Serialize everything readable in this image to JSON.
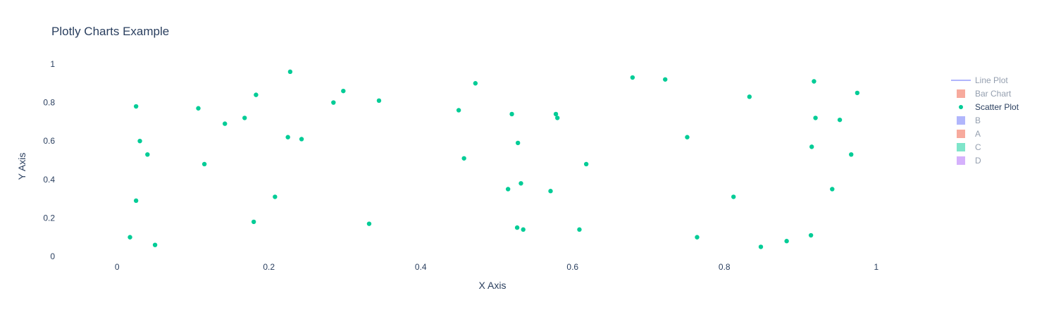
{
  "chart_data": {
    "type": "scatter",
    "title": "Plotly Charts Example",
    "xlabel": "X Axis",
    "ylabel": "Y Axis",
    "xlim": [
      -0.08,
      1.08
    ],
    "ylim": [
      -0.04,
      1.04
    ],
    "x_ticks": [
      "0",
      "0.2",
      "0.4",
      "0.6",
      "0.8",
      "1"
    ],
    "y_ticks": [
      "0",
      "0.2",
      "0.4",
      "0.6",
      "0.8",
      "1"
    ],
    "grid": false,
    "legend_position": "top-right",
    "legend": [
      {
        "name": "Line Plot",
        "symbol": "line",
        "color": "#636efa",
        "visible": false
      },
      {
        "name": "Bar Chart",
        "symbol": "square",
        "color": "#EF553B",
        "visible": false
      },
      {
        "name": "Scatter Plot",
        "symbol": "circle",
        "color": "#00cc96",
        "visible": true
      },
      {
        "name": "B",
        "symbol": "square",
        "color": "#636efa",
        "visible": false
      },
      {
        "name": "A",
        "symbol": "square",
        "color": "#EF553B",
        "visible": false
      },
      {
        "name": "C",
        "symbol": "square",
        "color": "#00cc96",
        "visible": false
      },
      {
        "name": "D",
        "symbol": "square",
        "color": "#ab63fa",
        "visible": false
      }
    ],
    "series": [
      {
        "name": "Scatter Plot",
        "color": "#00cc96",
        "points": [
          [
            0.017,
            0.1
          ],
          [
            0.025,
            0.78
          ],
          [
            0.025,
            0.29
          ],
          [
            0.03,
            0.6
          ],
          [
            0.04,
            0.53
          ],
          [
            0.05,
            0.06
          ],
          [
            0.107,
            0.77
          ],
          [
            0.115,
            0.48
          ],
          [
            0.142,
            0.69
          ],
          [
            0.168,
            0.72
          ],
          [
            0.18,
            0.18
          ],
          [
            0.183,
            0.84
          ],
          [
            0.208,
            0.31
          ],
          [
            0.225,
            0.62
          ],
          [
            0.228,
            0.96
          ],
          [
            0.243,
            0.61
          ],
          [
            0.285,
            0.8
          ],
          [
            0.298,
            0.86
          ],
          [
            0.332,
            0.17
          ],
          [
            0.345,
            0.81
          ],
          [
            0.45,
            0.76
          ],
          [
            0.457,
            0.51
          ],
          [
            0.472,
            0.9
          ],
          [
            0.515,
            0.35
          ],
          [
            0.52,
            0.74
          ],
          [
            0.527,
            0.15
          ],
          [
            0.528,
            0.59
          ],
          [
            0.532,
            0.38
          ],
          [
            0.535,
            0.14
          ],
          [
            0.571,
            0.34
          ],
          [
            0.578,
            0.74
          ],
          [
            0.58,
            0.72
          ],
          [
            0.609,
            0.14
          ],
          [
            0.618,
            0.48
          ],
          [
            0.679,
            0.93
          ],
          [
            0.722,
            0.92
          ],
          [
            0.751,
            0.62
          ],
          [
            0.764,
            0.1
          ],
          [
            0.812,
            0.31
          ],
          [
            0.833,
            0.83
          ],
          [
            0.848,
            0.05
          ],
          [
            0.882,
            0.08
          ],
          [
            0.914,
            0.11
          ],
          [
            0.915,
            0.57
          ],
          [
            0.918,
            0.91
          ],
          [
            0.92,
            0.72
          ],
          [
            0.942,
            0.35
          ],
          [
            0.952,
            0.71
          ],
          [
            0.967,
            0.53
          ],
          [
            0.975,
            0.85
          ]
        ]
      }
    ]
  }
}
